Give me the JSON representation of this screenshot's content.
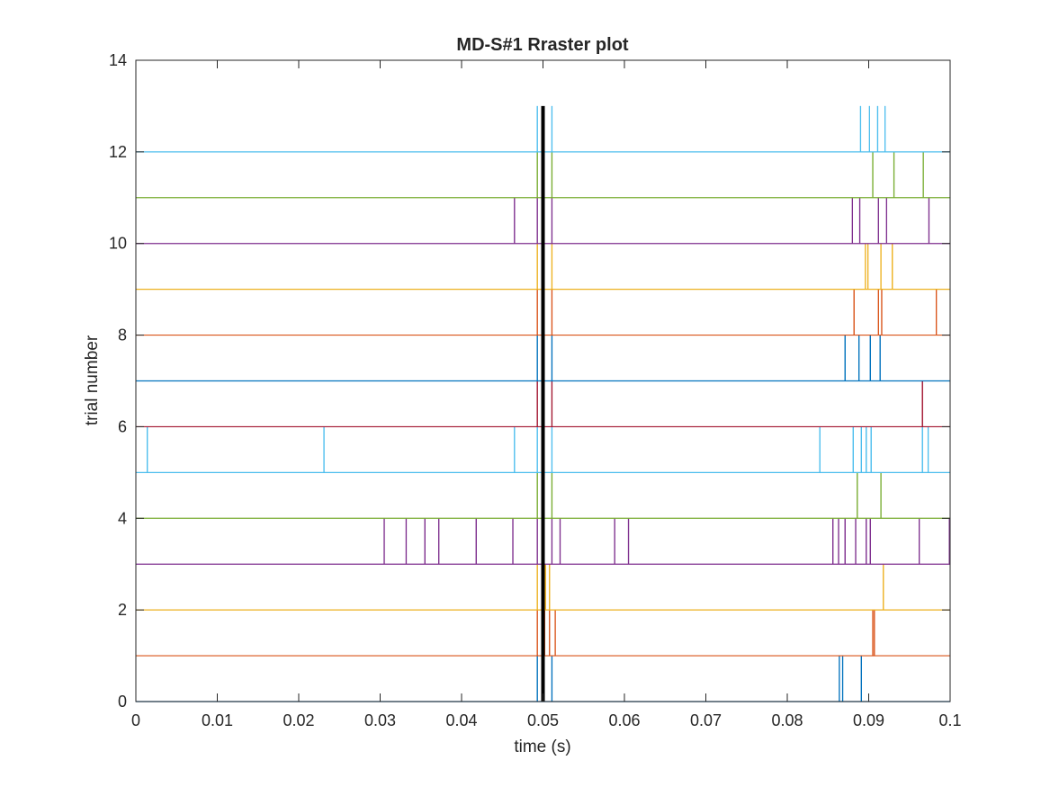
{
  "chart_data": {
    "type": "raster",
    "title": "MD-S#1 Rraster plot",
    "xlabel": "time (s)",
    "ylabel": "trial number",
    "xlim": [
      0,
      0.1
    ],
    "ylim": [
      0,
      14
    ],
    "xticks": [
      0,
      0.01,
      0.02,
      0.03,
      0.04,
      0.05,
      0.06,
      0.07,
      0.08,
      0.09,
      0.1
    ],
    "xtick_labels": [
      "0",
      "0.01",
      "0.02",
      "0.03",
      "0.04",
      "0.05",
      "0.06",
      "0.07",
      "0.08",
      "0.09",
      "0.1"
    ],
    "yticks": [
      0,
      2,
      4,
      6,
      8,
      10,
      12,
      14
    ],
    "ytick_labels": [
      "0",
      "2",
      "4",
      "6",
      "8",
      "10",
      "12",
      "14"
    ],
    "spike_height": 1,
    "event_marker": {
      "x": 0.05,
      "color": "#000000"
    },
    "grid": false,
    "trials": [
      {
        "trial": 0,
        "color": "#0072BD",
        "spikes": [
          0.0493,
          0.0511,
          0.0864,
          0.0868,
          0.0891
        ]
      },
      {
        "trial": 1,
        "color": "#D95319",
        "spikes": [
          0.0493,
          0.0502,
          0.0508,
          0.0515,
          0.0905,
          0.0907
        ]
      },
      {
        "trial": 2,
        "color": "#EDB120",
        "spikes": [
          0.0493,
          0.0503,
          0.0508,
          0.0918
        ]
      },
      {
        "trial": 3,
        "color": "#7E2F8E",
        "spikes": [
          0.0305,
          0.0332,
          0.0355,
          0.0372,
          0.0418,
          0.0463,
          0.0493,
          0.0511,
          0.0521,
          0.0588,
          0.0605,
          0.0856,
          0.0863,
          0.0871,
          0.0884,
          0.0897,
          0.0902,
          0.0962,
          0.0999
        ]
      },
      {
        "trial": 4,
        "color": "#77AC30",
        "spikes": [
          0.0493,
          0.0511,
          0.0886,
          0.0915
        ]
      },
      {
        "trial": 5,
        "color": "#4DBEEE",
        "spikes": [
          0.0014,
          0.0231,
          0.0465,
          0.0493,
          0.0511,
          0.084,
          0.0881,
          0.0891,
          0.0897,
          0.0903,
          0.0966,
          0.0973
        ]
      },
      {
        "trial": 6,
        "color": "#A2142F",
        "spikes": [
          0.0493,
          0.0511,
          0.0966
        ]
      },
      {
        "trial": 7,
        "color": "#0072BD",
        "spikes": [
          0.0493,
          0.0511,
          0.0871,
          0.0888,
          0.0902,
          0.0914
        ]
      },
      {
        "trial": 8,
        "color": "#D95319",
        "spikes": [
          0.0493,
          0.0511,
          0.0882,
          0.0912,
          0.0916,
          0.0983
        ]
      },
      {
        "trial": 9,
        "color": "#EDB120",
        "spikes": [
          0.0493,
          0.0511,
          0.0896,
          0.0899,
          0.0915,
          0.0929
        ]
      },
      {
        "trial": 10,
        "color": "#7E2F8E",
        "spikes": [
          0.0465,
          0.0493,
          0.0511,
          0.088,
          0.0889,
          0.0912,
          0.0922,
          0.0974
        ]
      },
      {
        "trial": 11,
        "color": "#77AC30",
        "spikes": [
          0.0493,
          0.0511,
          0.0905,
          0.0931,
          0.0967
        ]
      },
      {
        "trial": 12,
        "color": "#4DBEEE",
        "spikes": [
          0.0493,
          0.0511,
          0.089,
          0.0901,
          0.0911,
          0.092
        ]
      }
    ]
  }
}
